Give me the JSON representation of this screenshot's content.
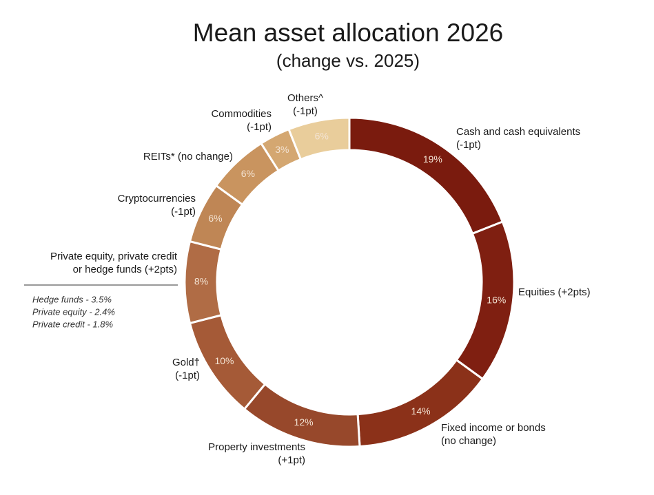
{
  "chart_data": {
    "type": "donut",
    "title": "Mean asset allocation 2026",
    "subtitle": "(change vs. 2025)",
    "labels": [
      [
        "Cash and cash equivalents",
        "(-1pt)"
      ],
      [
        "Equities (+2pts)"
      ],
      [
        "Fixed income or bonds",
        "(no change)"
      ],
      [
        "Property investments",
        "(+1pt)"
      ],
      [
        "Gold†",
        "(-1pt)"
      ],
      [
        "Private equity, private credit",
        "or hedge funds (+2pts)"
      ],
      [
        "Cryptocurrencies",
        "(-1pt)"
      ],
      [
        "REITs* (no change)"
      ],
      [
        "Commodities",
        "(-1pt)"
      ],
      [
        "Others^",
        "(-1pt)"
      ]
    ],
    "values": [
      19,
      16,
      14,
      12,
      10,
      8,
      6,
      6,
      3,
      6
    ],
    "value_labels": [
      "19%",
      "16%",
      "14%",
      "12%",
      "10%",
      "8%",
      "6%",
      "6%",
      "3%",
      "6%"
    ],
    "colors": [
      "#7a1b0e",
      "#7f1f11",
      "#8b3119",
      "#97482b",
      "#a55a37",
      "#b06c45",
      "#bf8655",
      "#c9945f",
      "#d4a771",
      "#e9cd9b"
    ],
    "notes": [
      "Hedge funds - 3.5%",
      "Private equity - 2.4%",
      "Private credit - 1.8%"
    ]
  }
}
